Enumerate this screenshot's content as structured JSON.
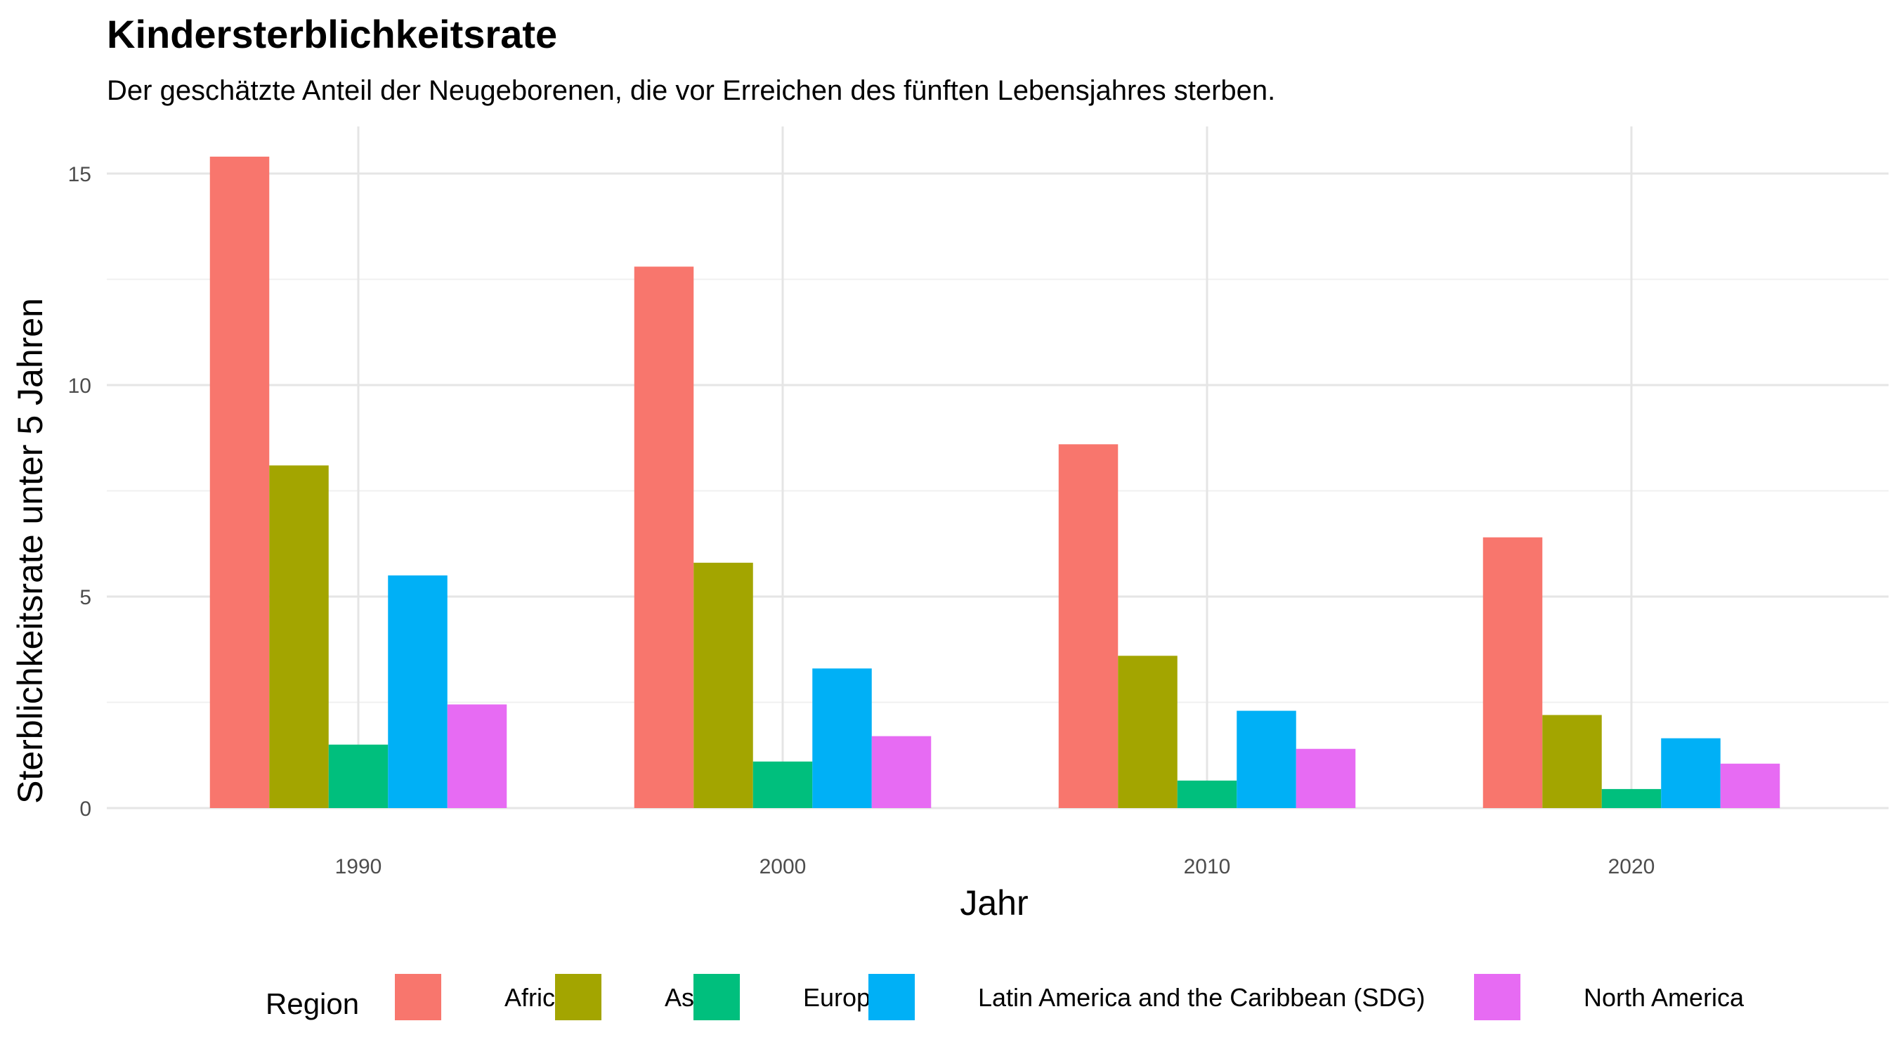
{
  "chart_data": {
    "type": "bar",
    "title": "Kindersterblichkeitsrate",
    "subtitle": "Der geschätzte Anteil der Neugeborenen, die vor Erreichen des fünften Lebensjahres sterben.",
    "xlabel": "Jahr",
    "ylabel": "Sterblichkeitsrate unter 5 Jahren",
    "categories": [
      "1990",
      "2000",
      "2010",
      "2020"
    ],
    "x_ticks": [
      "1990",
      "2000",
      "2010",
      "2020"
    ],
    "y_ticks": [
      "0",
      "5",
      "10",
      "15"
    ],
    "ylim": [
      0,
      16.2
    ],
    "grid": true,
    "legend": {
      "title": "Region",
      "position": "bottom"
    },
    "series": [
      {
        "name": "Africa",
        "color": "#F8766D",
        "values": [
          15.4,
          12.8,
          8.6,
          6.4
        ]
      },
      {
        "name": "Asia",
        "color": "#A3A500",
        "values": [
          8.1,
          5.8,
          3.6,
          2.2
        ]
      },
      {
        "name": "Europe",
        "color": "#00BF7D",
        "values": [
          1.5,
          1.1,
          0.65,
          0.45
        ]
      },
      {
        "name": "Latin America and the Caribbean (SDG)",
        "color": "#00B0F6",
        "values": [
          5.5,
          3.3,
          2.3,
          1.65
        ]
      },
      {
        "name": "North America",
        "color": "#E76BF3",
        "values": [
          2.45,
          1.7,
          1.4,
          1.05
        ]
      }
    ]
  }
}
